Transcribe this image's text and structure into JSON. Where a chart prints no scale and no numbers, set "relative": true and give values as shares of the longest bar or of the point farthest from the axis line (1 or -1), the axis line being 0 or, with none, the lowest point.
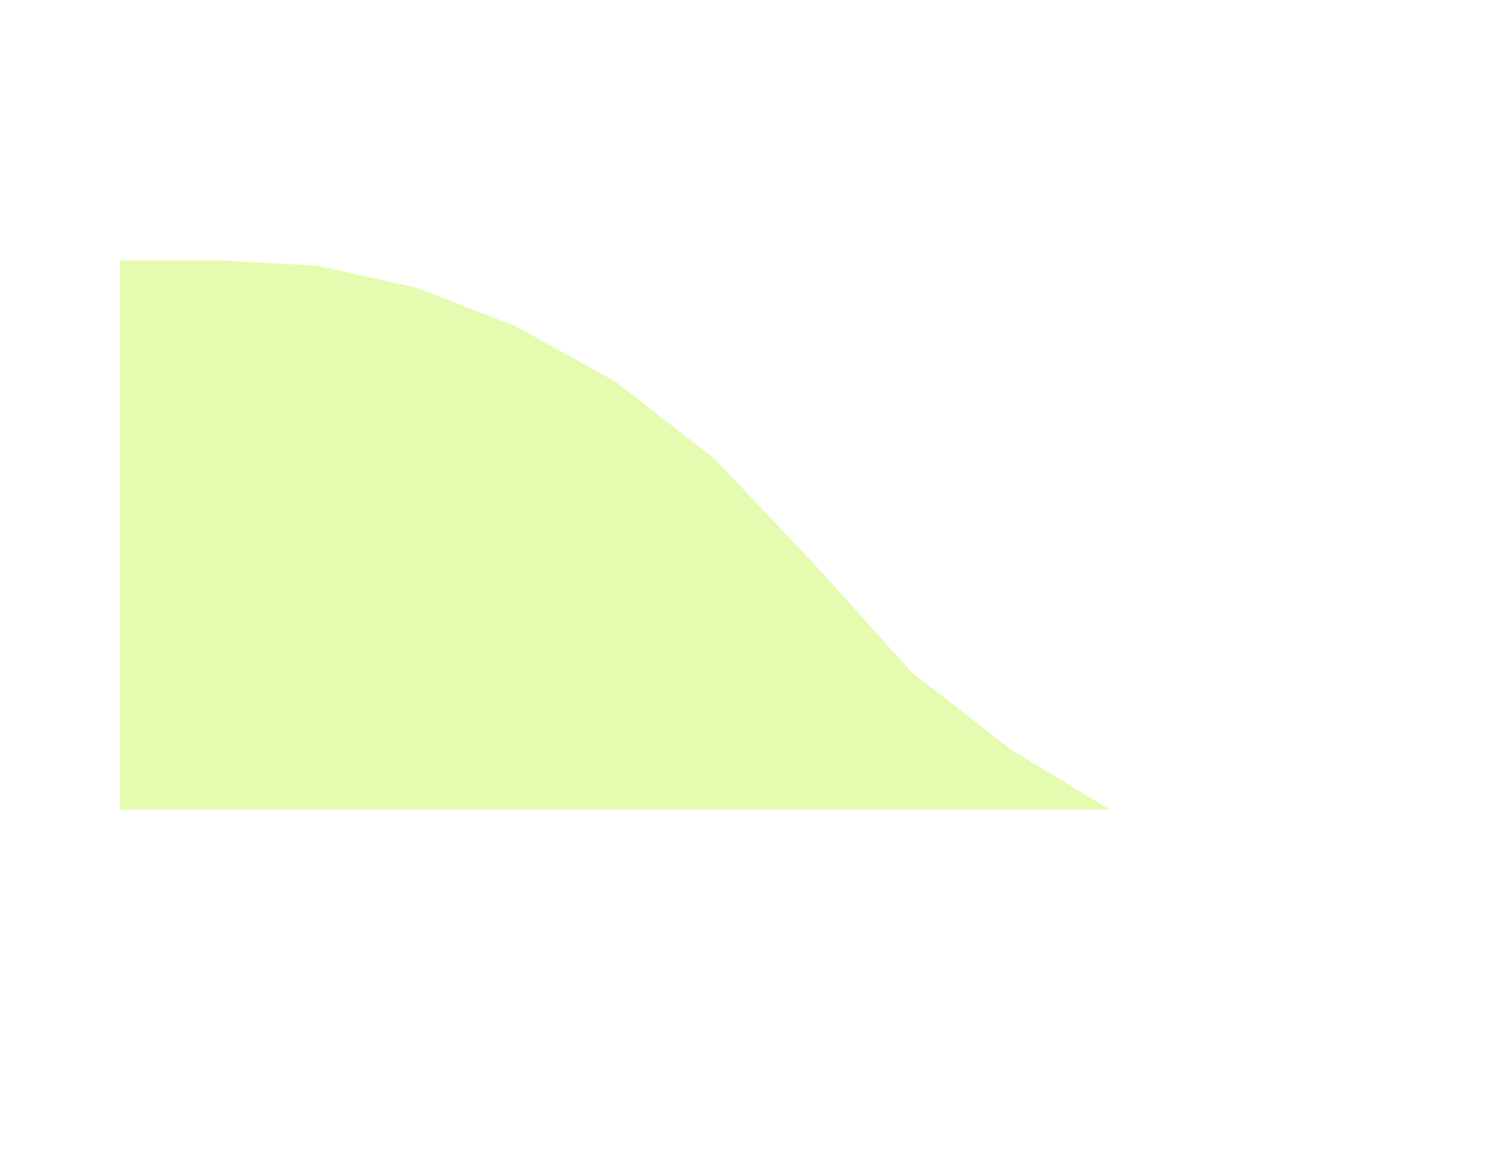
{
  "chart_data": {
    "type": "area",
    "relative": true,
    "color": "#dffb9c",
    "categories": [
      null,
      null,
      null,
      null,
      null,
      null,
      null,
      null,
      null,
      null,
      null
    ],
    "values": [
      1.0,
      1.0,
      0.99,
      0.95,
      0.88,
      0.78,
      0.64,
      0.45,
      0.25,
      0.11,
      0.0
    ]
  }
}
